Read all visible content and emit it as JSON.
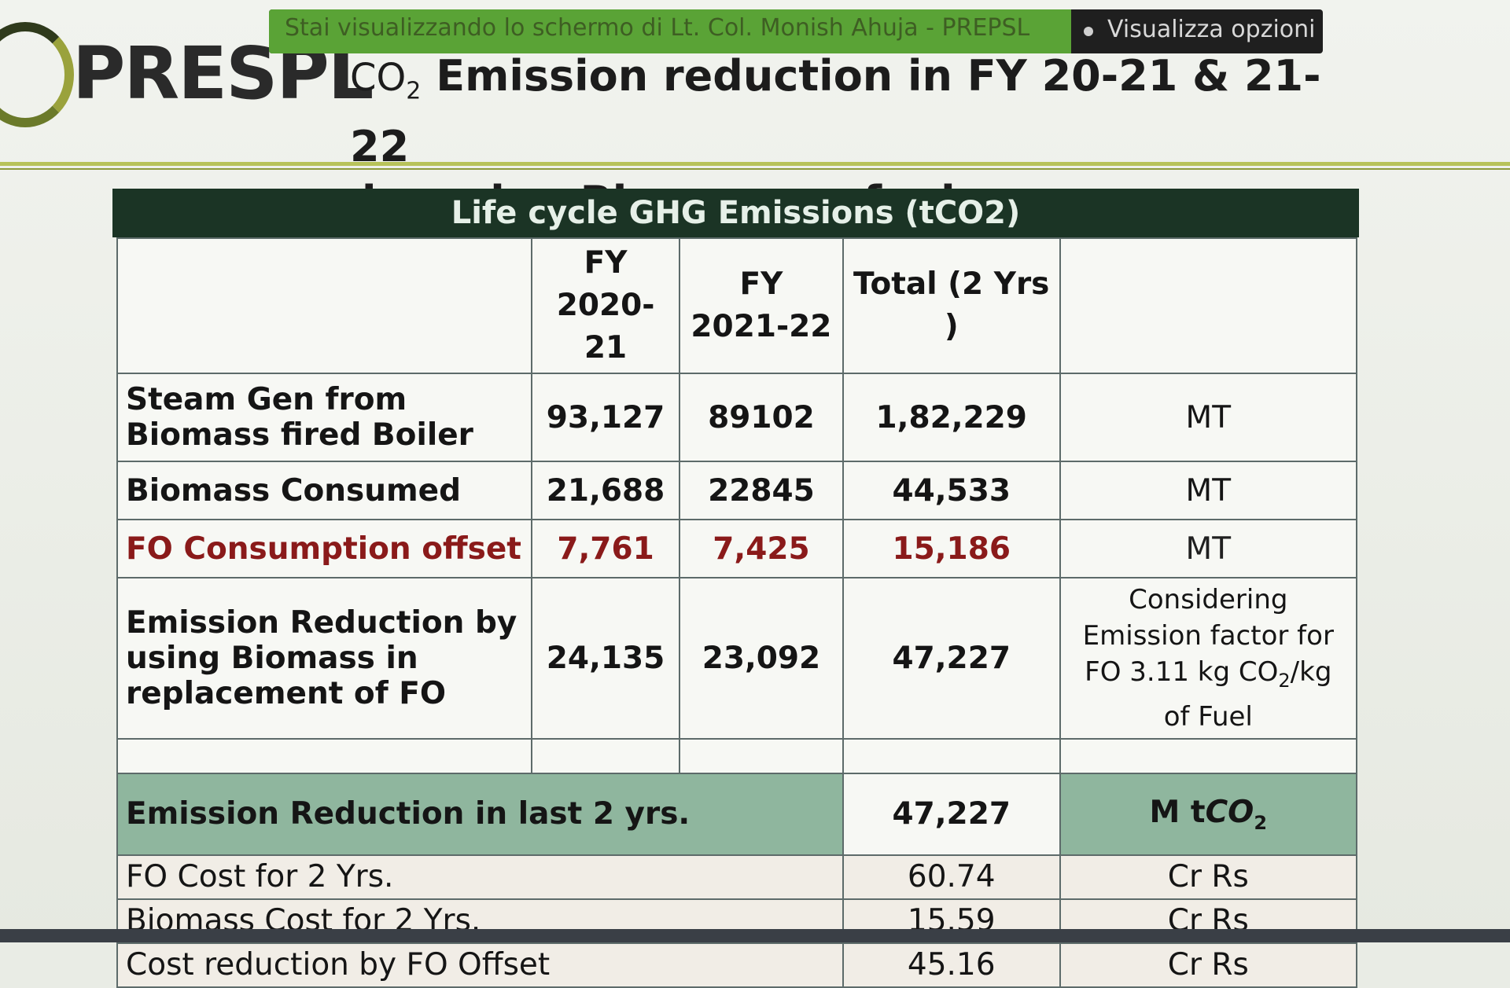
{
  "screen_share": {
    "message": "Stai visualizzando lo schermo di Lt. Col. Monish Ahuja - PREPSL",
    "options_label": "Visualizza opzioni"
  },
  "slide": {
    "logo_text": "PRESPL",
    "title_prefix": "CO",
    "title_prefix_sub": "2",
    "title_line1": "Emission reduction in FY 20-21 & 21-22",
    "title_line2": "by using Biomass as fuel"
  },
  "table": {
    "header": "Life cycle GHG Emissions (tCO2)",
    "columns": [
      "",
      "FY 2020-21",
      "FY 2021-22",
      "Total (2 Yrs )",
      ""
    ],
    "rows": [
      {
        "label": "Steam Gen from Biomass fired Boiler",
        "fy2021": "93,127",
        "fy2122": "89102",
        "total": "1,82,229",
        "unit": "MT"
      },
      {
        "label": "Biomass Consumed",
        "fy2021": "21,688",
        "fy2122": "22845",
        "total": "44,533",
        "unit": "MT"
      },
      {
        "label": "FO Consumption offset",
        "fy2021": "7,761",
        "fy2122": "7,425",
        "total": "15,186",
        "unit": "MT"
      },
      {
        "label": "Emission Reduction by using Biomass in replacement of FO",
        "fy2021": "24,135",
        "fy2122": "23,092",
        "total": "47,227",
        "unit_note_a": "Considering Emission factor for FO 3.11 kg CO",
        "unit_note_sub": "2",
        "unit_note_b": "/kg of Fuel"
      }
    ],
    "summary": {
      "label": "Emission Reduction in last 2 yrs.",
      "value": "47,227",
      "unit_a": "M t",
      "unit_b": "CO",
      "unit_sub": "2"
    },
    "costs": [
      {
        "label": "FO Cost for 2 Yrs.",
        "value": "60.74",
        "unit": "Cr Rs"
      },
      {
        "label": "Biomass  Cost for 2 Yrs.",
        "value": "15.59",
        "unit": "Cr Rs"
      },
      {
        "label": "Cost reduction by FO Offset",
        "value": "45.16",
        "unit": "Cr Rs"
      }
    ]
  },
  "colors": {
    "header_bg": "#1b3425",
    "summary_bg": "#8fb69e",
    "offset_text": "#8a1a1a",
    "share_green": "#5aa336"
  }
}
